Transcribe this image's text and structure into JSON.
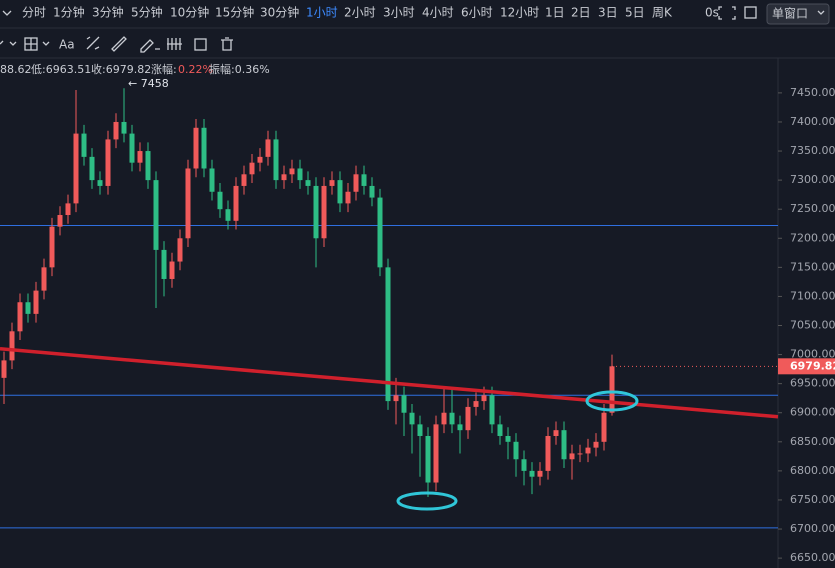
{
  "toolbar": {
    "timeframes": [
      "分时",
      "1分钟",
      "3分钟",
      "5分钟",
      "10分钟",
      "15分钟",
      "30分钟",
      "1小时",
      "2小时",
      "3小时",
      "4小时",
      "6小时",
      "12小时",
      "1日",
      "2日",
      "3日",
      "5日",
      "周K"
    ],
    "timer": "0s",
    "window_mode": "单窗口",
    "font_tool": "Aa"
  },
  "info": {
    "open_partial": "88.62",
    "low": "低:6963.51",
    "close": "收:6979.82",
    "change_label": "涨幅:",
    "change": "0.22%",
    "amplitude": "振幅:0.36%"
  },
  "chart_data": {
    "type": "candlestick",
    "open": [
      6960,
      6990,
      7040,
      7090,
      7070,
      7110,
      7150,
      7220,
      7240,
      7260,
      7380,
      7340,
      7300,
      7290,
      7370,
      7400,
      7380,
      7330,
      7350,
      7300,
      7180,
      7130,
      7160,
      7200,
      7320,
      7390,
      7320,
      7280,
      7250,
      7230,
      7290,
      7310,
      7330,
      7340,
      7370,
      7300,
      7310,
      7320,
      7300,
      7290,
      7200,
      7290,
      7300,
      7260,
      7280,
      7310,
      7290,
      7270,
      7150,
      6920,
      6930,
      6900,
      6880,
      6860,
      6780,
      6880,
      6900,
      6880,
      6870,
      6910,
      6920,
      6930,
      6880,
      6860,
      6850,
      6820,
      6800,
      6790,
      6800,
      6860,
      6870,
      6820,
      6830,
      6830,
      6840,
      6850,
      6900
    ],
    "high": [
      7005,
      7055,
      7105,
      7105,
      7125,
      7165,
      7235,
      7255,
      7275,
      7455,
      7395,
      7355,
      7315,
      7385,
      7415,
      7458,
      7395,
      7365,
      7365,
      7315,
      7195,
      7175,
      7215,
      7335,
      7405,
      7405,
      7335,
      7295,
      7265,
      7305,
      7325,
      7345,
      7355,
      7385,
      7385,
      7325,
      7335,
      7335,
      7315,
      7305,
      7305,
      7315,
      7315,
      7295,
      7325,
      7325,
      7305,
      7285,
      7165,
      6960,
      6945,
      6915,
      6895,
      6875,
      6895,
      6945,
      6940,
      6895,
      6925,
      6935,
      6945,
      6945,
      6895,
      6875,
      6865,
      6835,
      6815,
      6815,
      6875,
      6885,
      6885,
      6845,
      6845,
      6855,
      6865,
      6915,
      7000
    ],
    "low": [
      6915,
      6975,
      7025,
      7055,
      7055,
      7095,
      7135,
      7205,
      7225,
      7245,
      7325,
      7285,
      7275,
      7275,
      7355,
      7365,
      7315,
      7315,
      7285,
      7080,
      7100,
      7115,
      7145,
      7185,
      7305,
      7305,
      7265,
      7235,
      7215,
      7215,
      7275,
      7295,
      7315,
      7325,
      7285,
      7285,
      7295,
      7285,
      7275,
      7150,
      7185,
      7275,
      7245,
      7245,
      7265,
      7275,
      7255,
      7135,
      6905,
      6880,
      6860,
      6830,
      6790,
      6755,
      6765,
      6865,
      6865,
      6830,
      6855,
      6895,
      6905,
      6865,
      6845,
      6820,
      6790,
      6775,
      6760,
      6775,
      6785,
      6845,
      6805,
      6785,
      6815,
      6815,
      6825,
      6835,
      6895
    ],
    "close": [
      6990,
      7040,
      7090,
      7070,
      7110,
      7150,
      7220,
      7240,
      7260,
      7380,
      7340,
      7300,
      7290,
      7370,
      7400,
      7380,
      7330,
      7350,
      7300,
      7180,
      7130,
      7160,
      7200,
      7320,
      7390,
      7320,
      7280,
      7250,
      7230,
      7290,
      7310,
      7330,
      7340,
      7370,
      7300,
      7310,
      7320,
      7300,
      7290,
      7200,
      7290,
      7300,
      7260,
      7280,
      7310,
      7290,
      7270,
      7150,
      6920,
      6930,
      6900,
      6880,
      6860,
      6780,
      6880,
      6900,
      6880,
      6870,
      6910,
      6920,
      6930,
      6880,
      6860,
      6850,
      6820,
      6800,
      6790,
      6800,
      6860,
      6870,
      6820,
      6830,
      6830,
      6840,
      6850,
      6900,
      6979.82
    ],
    "up_color": "#f05a5a",
    "down_color": "#2ebd85",
    "high_label": "← 7458",
    "last_price_label": "6979.82",
    "horizontal_lines": [
      7222,
      6930,
      6702
    ],
    "trendline": {
      "start": 7010,
      "end": 6893,
      "color": "#d0202c"
    },
    "ylim": [
      6633,
      7510
    ],
    "yticks": [
      {
        "value": 6650,
        "label": "6650.00"
      },
      {
        "value": 6700,
        "label": "6700.00"
      },
      {
        "value": 6750,
        "label": "6750.00"
      },
      {
        "value": 6800,
        "label": "6800.00"
      },
      {
        "value": 6850,
        "label": "6850.00"
      },
      {
        "value": 6900,
        "label": "6900.00"
      },
      {
        "value": 6950,
        "label": "6950.00"
      },
      {
        "value": 7000,
        "label": "7000.00"
      },
      {
        "value": 7050,
        "label": "7050.00"
      },
      {
        "value": 7100,
        "label": "7100.00"
      },
      {
        "value": 7150,
        "label": "7150.00"
      },
      {
        "value": 7200,
        "label": "7200.00"
      },
      {
        "value": 7250,
        "label": "7250.00"
      },
      {
        "value": 7300,
        "label": "7300.00"
      },
      {
        "value": 7350,
        "label": "7350.00"
      },
      {
        "value": 7400,
        "label": "7400.00"
      },
      {
        "value": 7450,
        "label": "7450.00"
      }
    ]
  }
}
